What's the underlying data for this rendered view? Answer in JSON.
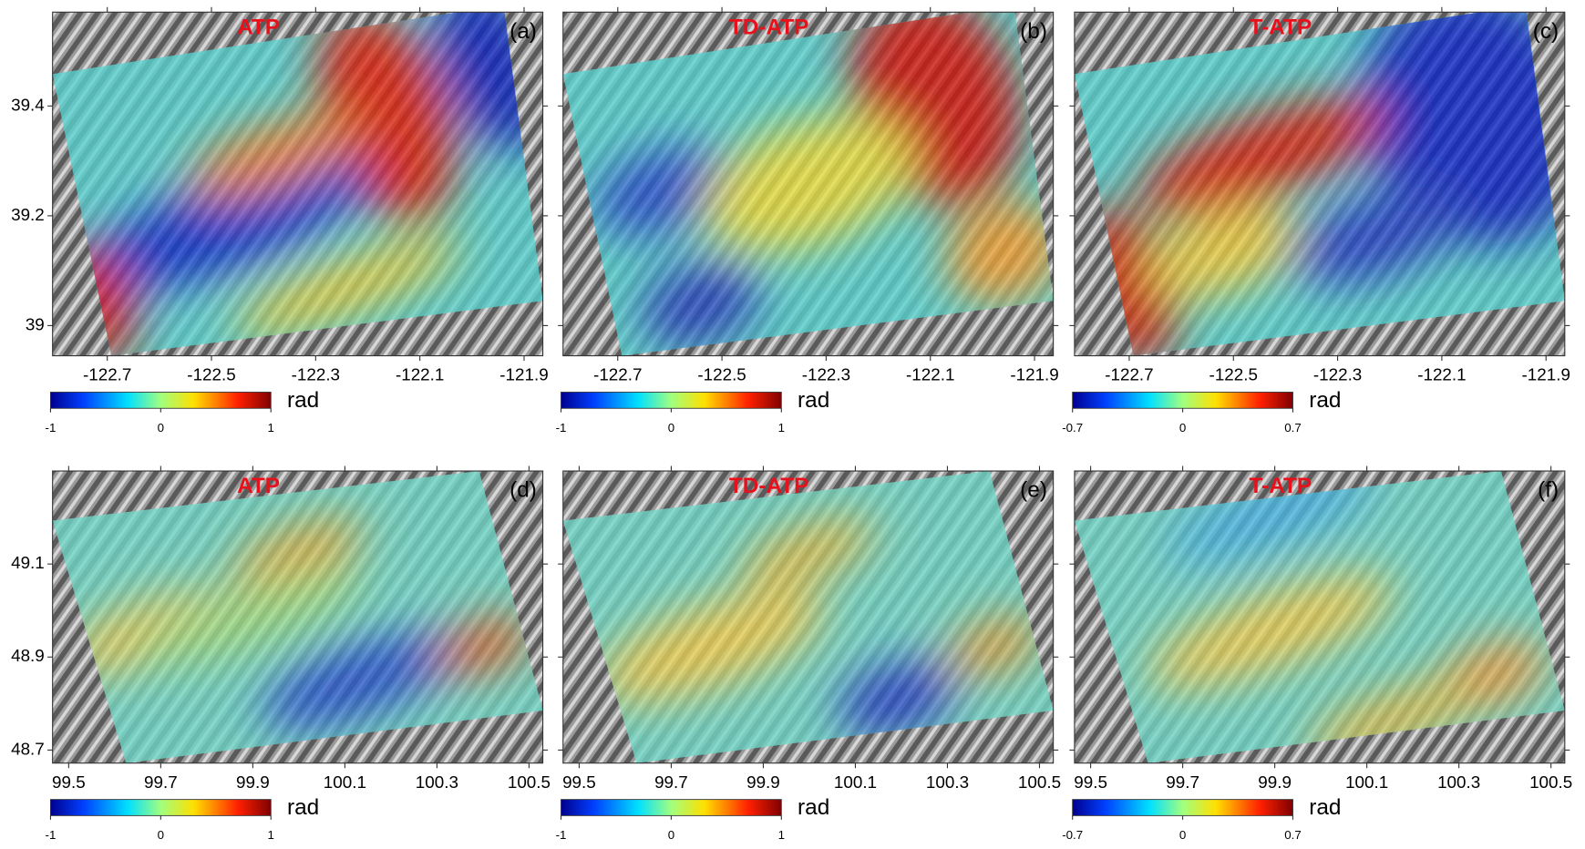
{
  "rows": [
    {
      "xlim": [
        -122.805,
        -121.864
      ],
      "xticks": [
        -122.7,
        -122.5,
        -122.3,
        -122.1,
        -121.9
      ],
      "ylim": [
        38.945,
        39.571
      ],
      "yticks": [
        39,
        39.2,
        39.4
      ],
      "panels": [
        {
          "title": "ATP",
          "label": "(a)",
          "colorbar": {
            "ticks": [
              -1,
              0,
              1
            ],
            "unit": "rad"
          }
        },
        {
          "title": "TD-ATP",
          "label": "(b)",
          "colorbar": {
            "ticks": [
              -1,
              0,
              1
            ],
            "unit": "rad"
          }
        },
        {
          "title": "T-ATP",
          "label": "(c)",
          "colorbar": {
            "ticks": [
              -0.7,
              0,
              0.7
            ],
            "unit": "rad"
          }
        }
      ]
    },
    {
      "xlim": [
        99.465,
        100.53
      ],
      "xticks": [
        99.5,
        99.7,
        99.9,
        100.1,
        100.3,
        100.5
      ],
      "ylim": [
        48.672,
        49.3
      ],
      "yticks": [
        48.7,
        48.9,
        49.1
      ],
      "panels": [
        {
          "title": "ATP",
          "label": "(d)",
          "colorbar": {
            "ticks": [
              -1,
              0,
              1
            ],
            "unit": "rad"
          }
        },
        {
          "title": "TD-ATP",
          "label": "(e)",
          "colorbar": {
            "ticks": [
              -1,
              0,
              1
            ],
            "unit": "rad"
          }
        },
        {
          "title": "T-ATP",
          "label": "(f)",
          "colorbar": {
            "ticks": [
              -0.7,
              0,
              0.7
            ],
            "unit": "rad"
          }
        }
      ]
    }
  ]
}
